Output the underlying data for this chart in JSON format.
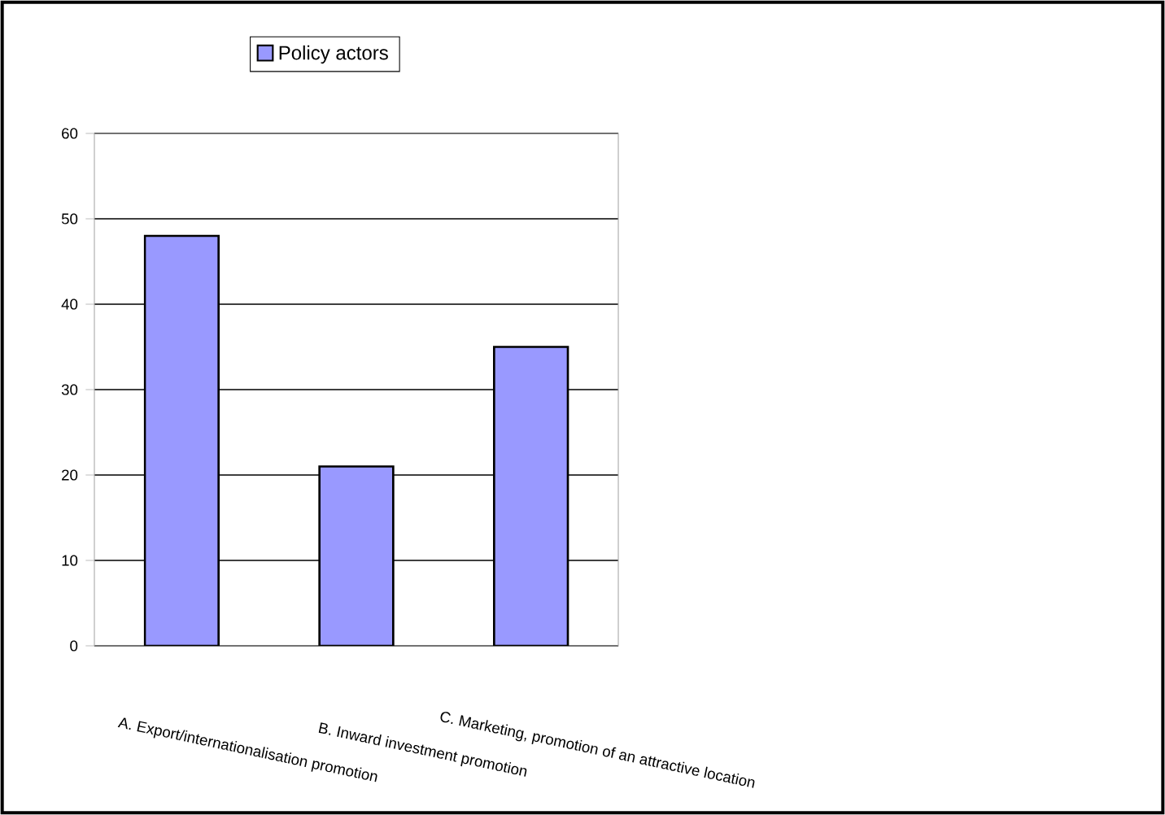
{
  "chart_data": {
    "type": "bar",
    "categories": [
      "A. Export/internationalisation promotion",
      "B. Inward investment promotion",
      "C. Marketing, promotion of an attractive location"
    ],
    "series": [
      {
        "name": "Policy actors",
        "color": "#9999ff",
        "values": [
          48,
          21,
          35
        ]
      }
    ],
    "ylim": [
      0,
      60
    ],
    "yticks": [
      0,
      10,
      20,
      30,
      40,
      50,
      60
    ],
    "grid": "y",
    "legend": "top"
  }
}
